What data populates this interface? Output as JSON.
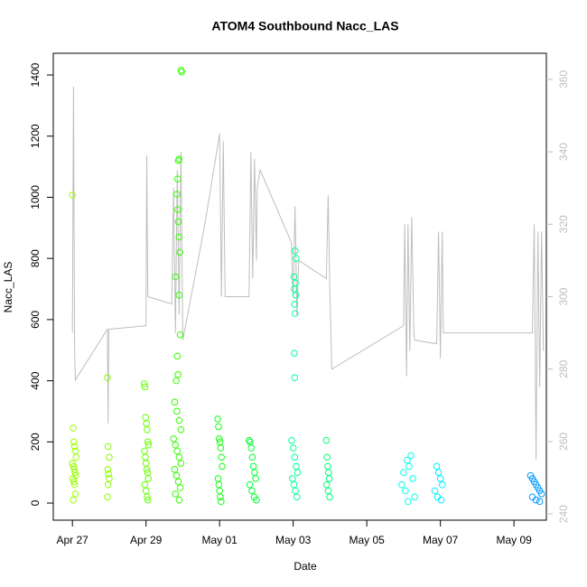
{
  "chart_data": {
    "type": "scatter",
    "title": "ATOM4 Southbound Nacc_LAS",
    "xlabel": "Date",
    "ylabel": "Nacc_LAS",
    "xlim": [
      -0.52,
      12.88
    ],
    "ylim": [
      -56,
      1471
    ],
    "y2lim": [
      238.3,
      367.2
    ],
    "xticks": [
      {
        "value": 0,
        "label": "Apr 27"
      },
      {
        "value": 2,
        "label": "Apr 29"
      },
      {
        "value": 4,
        "label": "May 01"
      },
      {
        "value": 6,
        "label": "May 03"
      },
      {
        "value": 8,
        "label": "May 05"
      },
      {
        "value": 10,
        "label": "May 07"
      },
      {
        "value": 12,
        "label": "May 09"
      }
    ],
    "yticks": [
      0,
      200,
      400,
      600,
      800,
      1000,
      1200,
      1400
    ],
    "y2ticks": [
      240,
      260,
      280,
      300,
      320,
      340,
      360
    ],
    "series": [
      {
        "type": "line",
        "axis": "y2",
        "color": "#bebebe",
        "x": [
          0,
          0.03,
          0.06,
          0.08,
          0.95,
          0.97,
          0.99,
          2.0,
          2.02,
          2.05,
          2.7,
          2.75,
          2.8,
          2.85,
          2.9,
          2.95,
          3.0,
          3.6,
          4.0,
          4.05,
          4.1,
          4.15,
          4.8,
          4.85,
          4.9,
          4.95,
          5.0,
          5.02,
          5.1,
          5.95,
          6.0,
          6.05,
          6.1,
          6.15,
          6.9,
          6.95,
          7.0,
          7.05,
          9.0,
          9.03,
          9.08,
          9.12,
          9.17,
          9.22,
          9.28,
          9.3,
          9.9,
          9.95,
          10.0,
          10.05,
          10.08,
          12.5,
          12.55,
          12.6,
          12.65,
          12.7,
          12.75,
          12.8
        ],
        "values": [
          290,
          358,
          285,
          277,
          291,
          265,
          291,
          292,
          339,
          300,
          298,
          330,
          290,
          335,
          295,
          340,
          288,
          320,
          345,
          300,
          343,
          300,
          300,
          340,
          305,
          338,
          310,
          330,
          335,
          315,
          300,
          325,
          295,
          310,
          305,
          328,
          300,
          280,
          292,
          320,
          278,
          320,
          285,
          322,
          290,
          288,
          287,
          318,
          283,
          318,
          290,
          290,
          320,
          255,
          318,
          275,
          318,
          285
        ]
      },
      {
        "color": "#99ff00",
        "x": [
          0.0,
          0.02,
          0.04,
          0.06,
          0.08,
          0.1,
          0.0,
          0.03,
          0.05,
          0.07,
          0.09,
          0.01,
          0.04,
          0.06,
          0.08,
          0.02
        ],
        "values": [
          1007,
          245,
          200,
          185,
          170,
          150,
          130,
          120,
          110,
          100,
          90,
          80,
          70,
          60,
          30,
          10
        ]
      },
      {
        "color": "#88ff00",
        "x": [
          0.95,
          0.97,
          1.0,
          0.96,
          0.98,
          1.0,
          0.97,
          0.95
        ],
        "values": [
          410,
          185,
          150,
          110,
          95,
          80,
          60,
          20
        ]
      },
      {
        "color": "#66ff00",
        "x": [
          1.95,
          1.97,
          1.99,
          2.01,
          2.03,
          2.05,
          2.07,
          1.96,
          1.98,
          2.0,
          2.02,
          2.04,
          2.06,
          1.97,
          2.0,
          2.03,
          2.05
        ],
        "values": [
          390,
          380,
          280,
          260,
          240,
          200,
          190,
          170,
          150,
          130,
          110,
          100,
          80,
          60,
          40,
          20,
          10
        ]
      },
      {
        "color": "#33ff00",
        "x": [
          2.95,
          2.97,
          2.9,
          2.88,
          2.86,
          2.84,
          2.86,
          2.88,
          2.9,
          2.92,
          2.8,
          2.9,
          2.93,
          2.85,
          2.87,
          2.82,
          2.78,
          2.84,
          2.9,
          2.95,
          2.75,
          2.8,
          2.85,
          2.9,
          2.95,
          2.78,
          2.83,
          2.88,
          2.93,
          2.8,
          2.9
        ],
        "values": [
          1415,
          1410,
          1125,
          1120,
          1060,
          1010,
          960,
          920,
          870,
          820,
          740,
          680,
          550,
          480,
          420,
          400,
          330,
          300,
          270,
          240,
          210,
          190,
          170,
          150,
          130,
          110,
          90,
          70,
          50,
          30,
          10
        ]
      },
      {
        "color": "#11ff11",
        "x": [
          3.95,
          3.97,
          3.99,
          4.01,
          4.03,
          4.05,
          4.07,
          3.96,
          3.98,
          4.0,
          4.02,
          4.04
        ],
        "values": [
          275,
          250,
          210,
          200,
          180,
          150,
          120,
          80,
          60,
          40,
          20,
          5
        ]
      },
      {
        "color": "#00ff33",
        "x": [
          4.8,
          4.83,
          4.86,
          4.89,
          4.92,
          4.95,
          4.98,
          4.82,
          4.88,
          4.94,
          5.0
        ],
        "values": [
          205,
          200,
          180,
          150,
          120,
          100,
          80,
          60,
          40,
          20,
          10
        ]
      },
      {
        "color": "#00ff99",
        "x": [
          6.05,
          6.08,
          6.02,
          6.06,
          6.03,
          6.07,
          6.04,
          6.05,
          6.03,
          6.04,
          5.96,
          6.0,
          6.04,
          6.08,
          6.12,
          5.98,
          6.02,
          6.06,
          6.1
        ],
        "values": [
          825,
          800,
          740,
          720,
          700,
          680,
          650,
          620,
          490,
          410,
          205,
          180,
          150,
          120,
          100,
          80,
          60,
          40,
          20
        ]
      },
      {
        "color": "#00ff77",
        "x": [
          6.9,
          6.92,
          6.94,
          6.96,
          6.98,
          6.91,
          6.95,
          6.99
        ],
        "values": [
          205,
          150,
          120,
          100,
          80,
          60,
          40,
          20
        ]
      },
      {
        "color": "#00ffee",
        "x": [
          9.2,
          9.1,
          9.15,
          9.0,
          9.25,
          8.95,
          9.05,
          9.3,
          9.12
        ],
        "values": [
          155,
          140,
          120,
          100,
          80,
          60,
          40,
          20,
          5
        ]
      },
      {
        "color": "#00eeff",
        "x": [
          9.9,
          9.95,
          10.0,
          10.05,
          9.85,
          9.92,
          10.02
        ],
        "values": [
          120,
          100,
          80,
          60,
          40,
          20,
          10
        ]
      },
      {
        "color": "#0099ff",
        "x": [
          12.45,
          12.5,
          12.55,
          12.6,
          12.65,
          12.7,
          12.75,
          12.5,
          12.6,
          12.7
        ],
        "values": [
          90,
          80,
          70,
          60,
          50,
          40,
          30,
          20,
          10,
          5
        ]
      }
    ]
  }
}
